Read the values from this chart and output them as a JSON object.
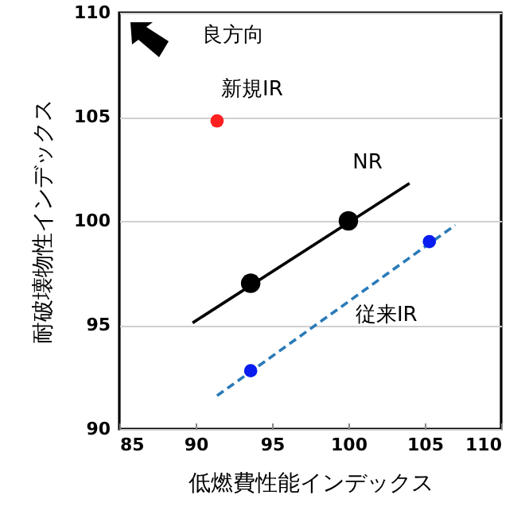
{
  "chart_data": {
    "type": "scatter",
    "xlabel": "低燃費性能インデックス",
    "ylabel": "耐破壊物性インデックス",
    "xlim": [
      85,
      110
    ],
    "xticks": [
      85,
      90,
      95,
      100,
      105,
      110
    ],
    "ylim": [
      90,
      110
    ],
    "yticks": [
      90,
      95,
      100,
      105,
      110
    ],
    "grid": "y",
    "annotations": [
      "良方向"
    ],
    "series": [
      {
        "name": "新規IR",
        "marker": "circle",
        "color": "#ff2020",
        "x": [
          91.4
        ],
        "values": [
          104.8
        ]
      },
      {
        "name": "NR",
        "marker": "circle",
        "color": "#000000",
        "x": [
          93.6,
          100
        ],
        "values": [
          97.0,
          100
        ]
      },
      {
        "type": "line",
        "color": "#000000",
        "x": [
          89.8,
          104.0
        ],
        "values": [
          95.1,
          101.8
        ],
        "line_style": "solid"
      },
      {
        "name": "従来IR",
        "marker": "circle",
        "color": "#0a1cf0",
        "x": [
          93.6,
          105.3
        ],
        "values": [
          92.8,
          99.0
        ]
      },
      {
        "type": "line",
        "color": "#2a7ab8",
        "x": [
          91.4,
          107.0
        ],
        "values": [
          91.6,
          99.8
        ],
        "line_style": "dashed"
      }
    ]
  }
}
